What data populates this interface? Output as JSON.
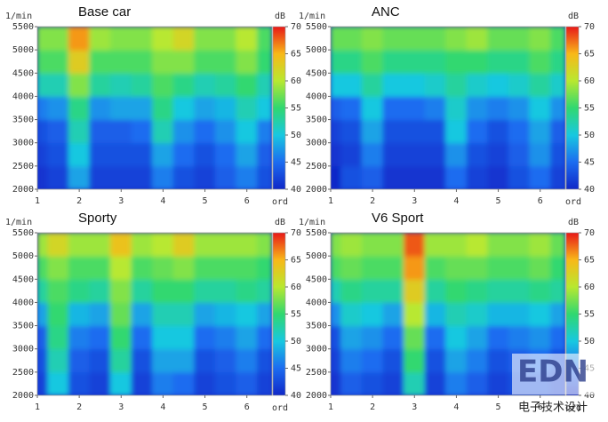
{
  "chart_data": [
    {
      "type": "heatmap",
      "title": "Base car",
      "y_label": "1/min",
      "x_label": "ord",
      "colorbar_label": "dB",
      "x": [
        1,
        1.25,
        1.75,
        2.25,
        2.75,
        3.25,
        3.75,
        4.25,
        4.75,
        5.25,
        5.75,
        6.25,
        6.6
      ],
      "y": [
        2000,
        2500,
        3000,
        3500,
        4000,
        4500,
        5000,
        5500
      ],
      "z": [
        [
          41,
          42,
          48,
          42,
          42,
          42,
          46,
          43,
          42,
          44,
          46,
          43
        ],
        [
          42,
          43,
          50,
          43,
          43,
          43,
          48,
          45,
          43,
          45,
          48,
          44
        ],
        [
          43,
          44,
          52,
          44,
          44,
          45,
          52,
          47,
          45,
          47,
          50,
          46
        ],
        [
          46,
          47,
          54,
          47,
          48,
          48,
          54,
          50,
          48,
          49,
          52,
          50
        ],
        [
          52,
          52,
          58,
          53,
          52,
          53,
          56,
          54,
          52,
          53,
          55,
          52
        ],
        [
          56,
          56,
          63,
          56,
          56,
          56,
          58,
          58,
          56,
          56,
          58,
          55
        ],
        [
          58,
          58,
          66,
          59,
          58,
          58,
          60,
          62,
          58,
          58,
          60,
          56
        ]
      ],
      "xlim": [
        1,
        6.6
      ],
      "xticks": [
        1,
        2,
        3,
        4,
        5,
        6
      ],
      "ylim": [
        2000,
        5500
      ],
      "yticks": [
        2000,
        2500,
        3000,
        3500,
        4000,
        4500,
        5000,
        5500
      ],
      "zlim": [
        40,
        70
      ],
      "zticks": [
        40,
        45,
        50,
        55,
        60,
        65,
        70
      ],
      "colorscale": [
        "#1028c8",
        "#1c6cf0",
        "#18c8e0",
        "#30d870",
        "#b8e830",
        "#f8b818",
        "#e81818"
      ]
    },
    {
      "type": "heatmap",
      "title": "ANC",
      "y_label": "1/min",
      "x_label": "ord",
      "colorbar_label": "dB",
      "x": [
        1,
        1.25,
        1.75,
        2.25,
        2.75,
        3.25,
        3.75,
        4.25,
        4.75,
        5.25,
        5.75,
        6.25,
        6.6
      ],
      "y": [
        2000,
        2500,
        3000,
        3500,
        4000,
        4500,
        5000,
        5500
      ],
      "z": [
        [
          40,
          43,
          44,
          41,
          41,
          41,
          45,
          42,
          41,
          43,
          45,
          42
        ],
        [
          41,
          42,
          46,
          42,
          42,
          42,
          47,
          43,
          42,
          44,
          47,
          43
        ],
        [
          42,
          43,
          48,
          43,
          43,
          43,
          50,
          45,
          43,
          45,
          48,
          44
        ],
        [
          44,
          45,
          50,
          45,
          45,
          46,
          51,
          47,
          46,
          47,
          50,
          47
        ],
        [
          50,
          50,
          53,
          50,
          50,
          51,
          53,
          51,
          50,
          51,
          53,
          51
        ],
        [
          54,
          54,
          56,
          54,
          54,
          54,
          55,
          55,
          54,
          54,
          56,
          54
        ],
        [
          57,
          57,
          58,
          57,
          57,
          57,
          58,
          59,
          57,
          57,
          58,
          56
        ]
      ],
      "xlim": [
        1,
        6.6
      ],
      "xticks": [
        1,
        2,
        3,
        4,
        5,
        6
      ],
      "ylim": [
        2000,
        5500
      ],
      "yticks": [
        2000,
        2500,
        3000,
        3500,
        4000,
        4500,
        5000,
        5500
      ],
      "zlim": [
        40,
        70
      ],
      "zticks": [
        40,
        45,
        50,
        55,
        60,
        65,
        70
      ],
      "colorscale": [
        "#1028c8",
        "#1c6cf0",
        "#18c8e0",
        "#30d870",
        "#b8e830",
        "#f8b818",
        "#e81818"
      ]
    },
    {
      "type": "heatmap",
      "title": "Sporty",
      "y_label": "1/min",
      "x_label": "ord",
      "colorbar_label": "dB",
      "x": [
        1,
        1.25,
        1.75,
        2.25,
        2.75,
        3.25,
        3.75,
        4.25,
        4.75,
        5.25,
        5.75,
        6.25,
        6.6
      ],
      "y": [
        2000,
        2500,
        3000,
        3500,
        4000,
        4500,
        5000,
        5500
      ],
      "z": [
        [
          42,
          50,
          43,
          42,
          50,
          42,
          46,
          45,
          42,
          43,
          44,
          42
        ],
        [
          43,
          52,
          44,
          43,
          53,
          43,
          48,
          48,
          43,
          44,
          46,
          43
        ],
        [
          44,
          54,
          46,
          45,
          55,
          45,
          50,
          50,
          45,
          46,
          48,
          45
        ],
        [
          48,
          55,
          49,
          48,
          57,
          48,
          52,
          52,
          48,
          49,
          50,
          48
        ],
        [
          53,
          56,
          54,
          53,
          58,
          53,
          55,
          55,
          53,
          53,
          54,
          53
        ],
        [
          56,
          58,
          56,
          56,
          60,
          56,
          57,
          58,
          56,
          56,
          56,
          55
        ],
        [
          59,
          62,
          59,
          59,
          64,
          59,
          60,
          63,
          59,
          59,
          59,
          58
        ]
      ],
      "xlim": [
        1,
        6.6
      ],
      "xticks": [
        1,
        2,
        3,
        4,
        5,
        6
      ],
      "ylim": [
        2000,
        5500
      ],
      "yticks": [
        2000,
        2500,
        3000,
        3500,
        4000,
        4500,
        5000,
        5500
      ],
      "zlim": [
        40,
        70
      ],
      "zticks": [
        40,
        45,
        50,
        55,
        60,
        65,
        70
      ],
      "colorscale": [
        "#1028c8",
        "#1c6cf0",
        "#18c8e0",
        "#30d870",
        "#b8e830",
        "#f8b818",
        "#e81818"
      ]
    },
    {
      "type": "heatmap",
      "title": "V6 Sport",
      "y_label": "1/min",
      "x_label": "ord",
      "colorbar_label": "dB",
      "x": [
        1,
        1.25,
        1.75,
        2.25,
        2.75,
        3.25,
        3.75,
        4.25,
        4.75,
        5.25,
        5.75,
        6.25,
        6.6
      ],
      "y": [
        2000,
        2500,
        3000,
        3500,
        4000,
        4500,
        5000,
        5500
      ],
      "z": [
        [
          41,
          44,
          43,
          42,
          52,
          42,
          46,
          44,
          42,
          43,
          43,
          42
        ],
        [
          42,
          46,
          45,
          43,
          55,
          43,
          48,
          46,
          43,
          44,
          45,
          43
        ],
        [
          43,
          48,
          47,
          45,
          57,
          45,
          50,
          48,
          45,
          46,
          47,
          45
        ],
        [
          47,
          51,
          50,
          48,
          60,
          49,
          52,
          51,
          49,
          49,
          50,
          48
        ],
        [
          52,
          54,
          53,
          53,
          63,
          53,
          55,
          54,
          53,
          53,
          54,
          53
        ],
        [
          56,
          57,
          56,
          56,
          66,
          56,
          57,
          57,
          56,
          56,
          57,
          55
        ],
        [
          58,
          59,
          58,
          58,
          68,
          59,
          59,
          60,
          58,
          58,
          59,
          57
        ]
      ],
      "xlim": [
        1,
        6.6
      ],
      "xticks": [
        1,
        2,
        3,
        4,
        5,
        6
      ],
      "ylim": [
        2000,
        5500
      ],
      "yticks": [
        2000,
        2500,
        3000,
        3500,
        4000,
        4500,
        5000,
        5500
      ],
      "zlim": [
        40,
        70
      ],
      "zticks": [
        40,
        45,
        50,
        55,
        60,
        65,
        70
      ],
      "colorscale": [
        "#1028c8",
        "#1c6cf0",
        "#18c8e0",
        "#30d870",
        "#b8e830",
        "#f8b818",
        "#e81818"
      ]
    }
  ],
  "watermark": {
    "logo": "EDN",
    "text": "电子技术设计"
  }
}
